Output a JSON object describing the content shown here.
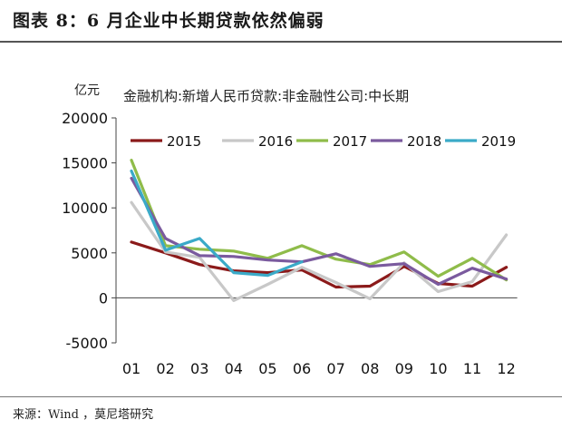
{
  "figure": {
    "title": "图表 8：6 月企业中长期贷款依然偏弱",
    "source": "来源：Wind ，莫尼塔研究"
  },
  "chart_data": {
    "type": "line",
    "title": "金融机构:新增人民币贷款:非金融性公司:中长期",
    "ylabel": "亿元",
    "xlabel": "",
    "categories": [
      "01",
      "02",
      "03",
      "04",
      "05",
      "06",
      "07",
      "08",
      "09",
      "10",
      "11",
      "12"
    ],
    "ylim": [
      -5000,
      20000
    ],
    "yticks": [
      -5000,
      0,
      5000,
      10000,
      15000,
      20000
    ],
    "grid": false,
    "legend_position": "top",
    "series": [
      {
        "name": "2015",
        "color": "#8b1a1a",
        "values": [
          6200,
          5000,
          3700,
          3000,
          2800,
          3100,
          1200,
          1300,
          3500,
          1600,
          1300,
          3400
        ]
      },
      {
        "name": "2016",
        "color": "#c8c8c8",
        "values": [
          10600,
          5100,
          4500,
          -300,
          1500,
          3400,
          1700,
          -100,
          3900,
          700,
          1800,
          7000
        ]
      },
      {
        "name": "2017",
        "color": "#8fbc4a",
        "values": [
          15300,
          5800,
          5400,
          5200,
          4400,
          5800,
          4300,
          3700,
          5100,
          2400,
          4400,
          2000
        ]
      },
      {
        "name": "2018",
        "color": "#7a5a9e",
        "values": [
          13300,
          6600,
          4700,
          4600,
          4200,
          4000,
          4900,
          3500,
          3800,
          1500,
          3300,
          2100
        ]
      },
      {
        "name": "2019",
        "color": "#3aaac8",
        "values": [
          14100,
          5300,
          6600,
          2800,
          2500,
          4000,
          null,
          null,
          null,
          null,
          null,
          null
        ]
      }
    ]
  }
}
